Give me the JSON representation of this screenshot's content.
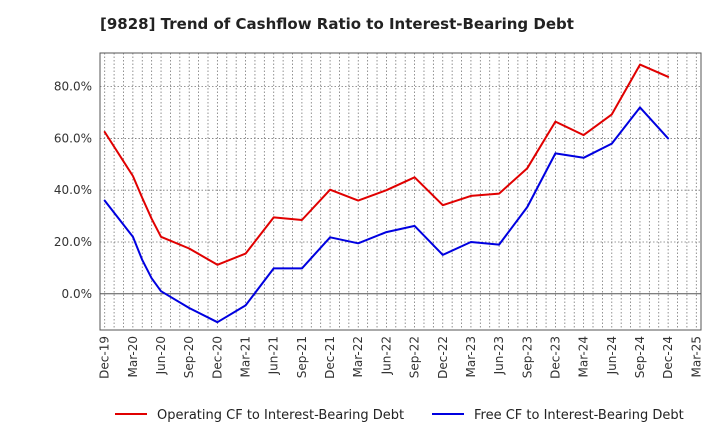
{
  "chart_data": {
    "type": "line",
    "title": "[9828]  Trend of Cashflow Ratio to Interest-Bearing Debt",
    "xlabel": "",
    "ylabel": "",
    "x_tick_labels": [
      "Dec-19",
      "Mar-20",
      "Jun-20",
      "Sep-20",
      "Dec-20",
      "Mar-21",
      "Jun-21",
      "Sep-21",
      "Dec-21",
      "Mar-22",
      "Jun-22",
      "Sep-22",
      "Dec-22",
      "Mar-23",
      "Jun-23",
      "Sep-23",
      "Dec-23",
      "Mar-24",
      "Jun-24",
      "Sep-24",
      "Dec-24",
      "Mar-25"
    ],
    "y_ticks": [
      0,
      20,
      40,
      60,
      80
    ],
    "y_tick_labels": [
      "0.0%",
      "20.0%",
      "40.0%",
      "60.0%",
      "80.0%"
    ],
    "ylim": [
      -14,
      93
    ],
    "grid": true,
    "legend_position": "bottom",
    "x": [
      "Dec-19",
      "Jan-20",
      "Feb-20",
      "Mar-20",
      "Apr-20",
      "May-20",
      "Jun-20",
      "Jul-20",
      "Aug-20",
      "Sep-20",
      "Oct-20",
      "Nov-20",
      "Dec-20",
      "Jan-21",
      "Feb-21",
      "Mar-21",
      "Apr-21",
      "May-21",
      "Jun-21",
      "Jul-21",
      "Aug-21",
      "Sep-21",
      "Oct-21",
      "Nov-21",
      "Dec-21",
      "Jan-22",
      "Feb-22",
      "Mar-22",
      "Apr-22",
      "May-22",
      "Jun-22",
      "Jul-22",
      "Aug-22",
      "Sep-22",
      "Oct-22",
      "Nov-22",
      "Dec-22",
      "Jan-23",
      "Feb-23",
      "Mar-23",
      "Apr-23",
      "May-23",
      "Jun-23",
      "Jul-23",
      "Aug-23",
      "Sep-23",
      "Oct-23",
      "Nov-23",
      "Dec-23",
      "Jan-24",
      "Feb-24",
      "Mar-24",
      "Apr-24",
      "May-24",
      "Jun-24",
      "Jul-24",
      "Aug-24",
      "Sep-24",
      "Oct-24",
      "Nov-24",
      "Dec-24",
      "Jan-25",
      "Feb-25",
      "Mar-25"
    ],
    "series": [
      {
        "name": "Operating CF to Interest-Bearing Debt",
        "color": "#e00000",
        "points": [
          [
            "Dec-19",
            62.5
          ],
          [
            "Mar-20",
            45.5
          ],
          [
            "Apr-20",
            37
          ],
          [
            "May-20",
            29
          ],
          [
            "Jun-20",
            22
          ],
          [
            "Sep-20",
            17.5
          ],
          [
            "Dec-20",
            11.2
          ],
          [
            "Mar-21",
            15.5
          ],
          [
            "Jun-21",
            29.5
          ],
          [
            "Sep-21",
            28.5
          ],
          [
            "Dec-21",
            40.2
          ],
          [
            "Mar-22",
            36
          ],
          [
            "Jun-22",
            40
          ],
          [
            "Sep-22",
            45
          ],
          [
            "Dec-22",
            34.2
          ],
          [
            "Mar-23",
            37.8
          ],
          [
            "Jun-23",
            38.7
          ],
          [
            "Sep-23",
            48.5
          ],
          [
            "Dec-23",
            66.5
          ],
          [
            "Mar-24",
            61.3
          ],
          [
            "Jun-24",
            69.3
          ],
          [
            "Sep-24",
            88.5
          ],
          [
            "Dec-24",
            83.8
          ]
        ]
      },
      {
        "name": "Free CF to Interest-Bearing Debt",
        "color": "#0000e0",
        "points": [
          [
            "Dec-19",
            36
          ],
          [
            "Mar-20",
            22
          ],
          [
            "Apr-20",
            13
          ],
          [
            "May-20",
            6
          ],
          [
            "Jun-20",
            1
          ],
          [
            "Sep-20",
            -5.5
          ],
          [
            "Dec-20",
            -11
          ],
          [
            "Mar-21",
            -4.5
          ],
          [
            "Jun-21",
            9.8
          ],
          [
            "Sep-21",
            9.8
          ],
          [
            "Dec-21",
            21.8
          ],
          [
            "Mar-22",
            19.5
          ],
          [
            "Jun-22",
            23.8
          ],
          [
            "Sep-22",
            26.2
          ],
          [
            "Dec-22",
            15
          ],
          [
            "Mar-23",
            20
          ],
          [
            "Jun-23",
            19
          ],
          [
            "Sep-23",
            33.5
          ],
          [
            "Dec-23",
            54.2
          ],
          [
            "Mar-24",
            52.5
          ],
          [
            "Jun-24",
            58
          ],
          [
            "Sep-24",
            72
          ],
          [
            "Dec-24",
            60
          ]
        ]
      }
    ]
  }
}
